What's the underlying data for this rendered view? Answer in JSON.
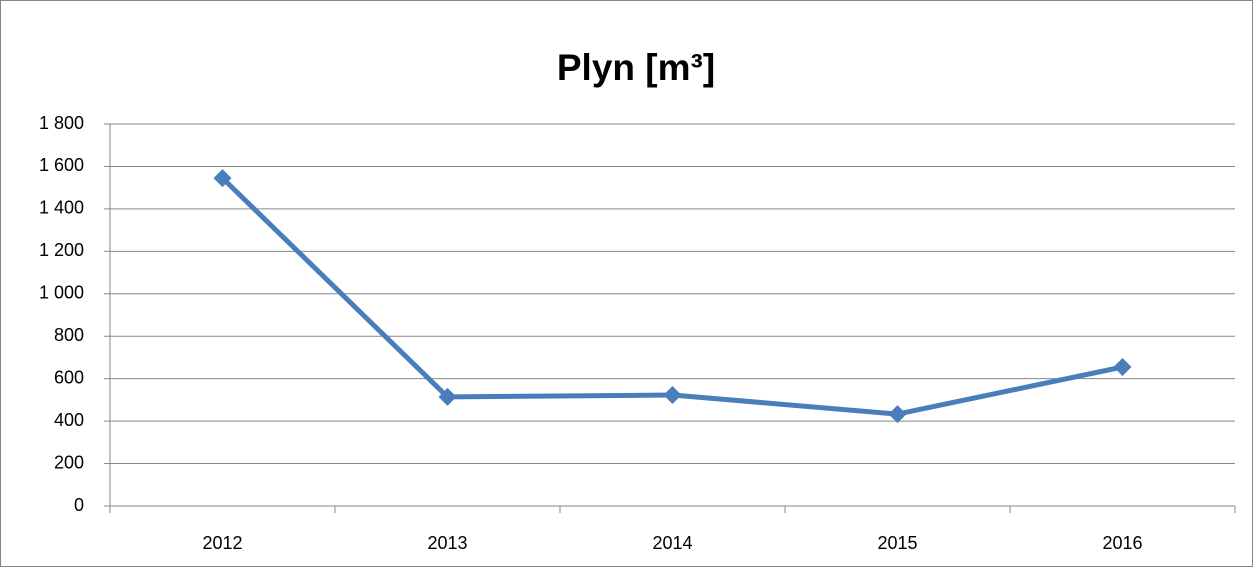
{
  "chart_data": {
    "type": "line",
    "title": "Plyn [m³]",
    "categories": [
      "2012",
      "2013",
      "2014",
      "2015",
      "2016"
    ],
    "values": [
      1545,
      514,
      523,
      433,
      655
    ],
    "color": "#4a7ebb",
    "ylim": [
      0,
      1800
    ],
    "yticks": [
      0,
      200,
      400,
      600,
      800,
      {
        "value": 1000,
        "label": "1 000"
      },
      {
        "value": 1200,
        "label": "1 200"
      },
      {
        "value": 1400,
        "label": "1 400"
      },
      {
        "value": 1600,
        "label": "1 600"
      },
      {
        "value": 1800,
        "label": "1 800"
      }
    ],
    "grid": true
  }
}
